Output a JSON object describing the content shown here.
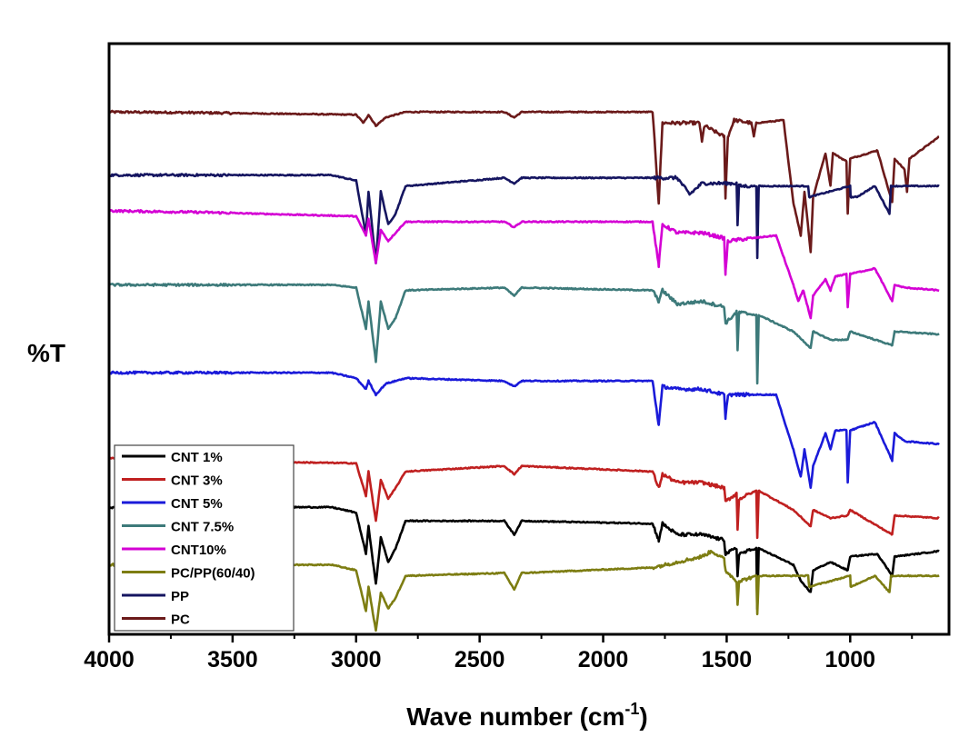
{
  "chart_data": {
    "type": "line",
    "title": "",
    "xlabel": "Wave number (cm",
    "xlabel_superscript": "-1",
    "xlabel_suffix": ")",
    "ylabel": "%T",
    "x_reversed": true,
    "xlim": [
      4000,
      600
    ],
    "x_ticks": [
      4000,
      3500,
      3000,
      2500,
      2000,
      1500,
      1000
    ],
    "x_tick_labels": [
      "4000",
      "3500",
      "3000",
      "2500",
      "2000",
      "1500",
      "1000"
    ],
    "y_units": "relative transmittance (stacked, arbitrary offset)",
    "grid": false,
    "legend_position": "bottom-left",
    "series": [
      {
        "name": "PC",
        "color": "#6b1a1a",
        "baseline": 0.945,
        "points": [
          [
            4000,
            0.945
          ],
          [
            3700,
            0.944
          ],
          [
            3000,
            0.94
          ],
          [
            2970,
            0.925
          ],
          [
            2950,
            0.94
          ],
          [
            2920,
            0.92
          ],
          [
            2880,
            0.935
          ],
          [
            2800,
            0.945
          ],
          [
            2400,
            0.945
          ],
          [
            2360,
            0.935
          ],
          [
            2330,
            0.945
          ],
          [
            1800,
            0.945
          ],
          [
            1775,
            0.78
          ],
          [
            1760,
            0.925
          ],
          [
            1610,
            0.925
          ],
          [
            1600,
            0.89
          ],
          [
            1590,
            0.92
          ],
          [
            1510,
            0.9
          ],
          [
            1505,
            0.79
          ],
          [
            1495,
            0.9
          ],
          [
            1470,
            0.93
          ],
          [
            1400,
            0.925
          ],
          [
            1390,
            0.9
          ],
          [
            1380,
            0.925
          ],
          [
            1270,
            0.93
          ],
          [
            1230,
            0.78
          ],
          [
            1200,
            0.72
          ],
          [
            1185,
            0.8
          ],
          [
            1160,
            0.69
          ],
          [
            1150,
            0.79
          ],
          [
            1100,
            0.87
          ],
          [
            1080,
            0.81
          ],
          [
            1070,
            0.87
          ],
          [
            1015,
            0.855
          ],
          [
            1010,
            0.76
          ],
          [
            1000,
            0.86
          ],
          [
            890,
            0.875
          ],
          [
            830,
            0.78
          ],
          [
            820,
            0.86
          ],
          [
            780,
            0.84
          ],
          [
            770,
            0.8
          ],
          [
            760,
            0.86
          ],
          [
            640,
            0.9
          ]
        ]
      },
      {
        "name": "PP",
        "color": "#151560",
        "baseline": 0.83,
        "points": [
          [
            4000,
            0.83
          ],
          [
            3100,
            0.83
          ],
          [
            3000,
            0.82
          ],
          [
            2960,
            0.72
          ],
          [
            2950,
            0.8
          ],
          [
            2920,
            0.67
          ],
          [
            2900,
            0.8
          ],
          [
            2870,
            0.74
          ],
          [
            2840,
            0.76
          ],
          [
            2800,
            0.81
          ],
          [
            2400,
            0.825
          ],
          [
            2360,
            0.815
          ],
          [
            2330,
            0.825
          ],
          [
            1700,
            0.825
          ],
          [
            1650,
            0.795
          ],
          [
            1600,
            0.815
          ],
          [
            1460,
            0.815
          ],
          [
            1456,
            0.74
          ],
          [
            1450,
            0.81
          ],
          [
            1380,
            0.81
          ],
          [
            1376,
            0.68
          ],
          [
            1370,
            0.81
          ],
          [
            1170,
            0.81
          ],
          [
            1166,
            0.79
          ],
          [
            1000,
            0.81
          ],
          [
            998,
            0.79
          ],
          [
            974,
            0.79
          ],
          [
            900,
            0.81
          ],
          [
            841,
            0.76
          ],
          [
            835,
            0.81
          ],
          [
            640,
            0.81
          ]
        ]
      },
      {
        "name": "CNT10%",
        "color": "#d400d4",
        "baseline": 0.765,
        "points": [
          [
            4000,
            0.765
          ],
          [
            3600,
            0.762
          ],
          [
            3000,
            0.755
          ],
          [
            2960,
            0.72
          ],
          [
            2950,
            0.75
          ],
          [
            2920,
            0.67
          ],
          [
            2900,
            0.73
          ],
          [
            2870,
            0.71
          ],
          [
            2800,
            0.745
          ],
          [
            2400,
            0.745
          ],
          [
            2360,
            0.735
          ],
          [
            2330,
            0.745
          ],
          [
            1800,
            0.745
          ],
          [
            1775,
            0.665
          ],
          [
            1760,
            0.74
          ],
          [
            1700,
            0.725
          ],
          [
            1600,
            0.725
          ],
          [
            1510,
            0.715
          ],
          [
            1505,
            0.65
          ],
          [
            1495,
            0.71
          ],
          [
            1300,
            0.72
          ],
          [
            1230,
            0.63
          ],
          [
            1210,
            0.6
          ],
          [
            1190,
            0.62
          ],
          [
            1160,
            0.57
          ],
          [
            1150,
            0.61
          ],
          [
            1100,
            0.64
          ],
          [
            1080,
            0.62
          ],
          [
            1060,
            0.645
          ],
          [
            1015,
            0.65
          ],
          [
            1010,
            0.59
          ],
          [
            1000,
            0.65
          ],
          [
            900,
            0.66
          ],
          [
            830,
            0.6
          ],
          [
            820,
            0.63
          ],
          [
            780,
            0.625
          ],
          [
            640,
            0.62
          ]
        ]
      },
      {
        "name": "CNT 7.5%",
        "color": "#3d7a7a",
        "baseline": 0.63,
        "points": [
          [
            4000,
            0.63
          ],
          [
            3100,
            0.63
          ],
          [
            3000,
            0.625
          ],
          [
            2960,
            0.55
          ],
          [
            2950,
            0.6
          ],
          [
            2920,
            0.49
          ],
          [
            2900,
            0.6
          ],
          [
            2870,
            0.55
          ],
          [
            2840,
            0.57
          ],
          [
            2800,
            0.62
          ],
          [
            2400,
            0.625
          ],
          [
            2360,
            0.61
          ],
          [
            2330,
            0.625
          ],
          [
            1800,
            0.62
          ],
          [
            1775,
            0.6
          ],
          [
            1760,
            0.62
          ],
          [
            1700,
            0.595
          ],
          [
            1600,
            0.6
          ],
          [
            1510,
            0.59
          ],
          [
            1505,
            0.56
          ],
          [
            1460,
            0.58
          ],
          [
            1456,
            0.51
          ],
          [
            1450,
            0.58
          ],
          [
            1380,
            0.575
          ],
          [
            1376,
            0.45
          ],
          [
            1370,
            0.575
          ],
          [
            1230,
            0.545
          ],
          [
            1160,
            0.515
          ],
          [
            1150,
            0.545
          ],
          [
            1080,
            0.53
          ],
          [
            1010,
            0.53
          ],
          [
            1000,
            0.545
          ],
          [
            830,
            0.52
          ],
          [
            820,
            0.545
          ],
          [
            640,
            0.54
          ]
        ]
      },
      {
        "name": "CNT 5%",
        "color": "#1a1ad9",
        "baseline": 0.47,
        "points": [
          [
            4000,
            0.47
          ],
          [
            3100,
            0.47
          ],
          [
            3000,
            0.46
          ],
          [
            2960,
            0.44
          ],
          [
            2950,
            0.455
          ],
          [
            2920,
            0.43
          ],
          [
            2880,
            0.45
          ],
          [
            2800,
            0.46
          ],
          [
            2400,
            0.455
          ],
          [
            2360,
            0.445
          ],
          [
            2330,
            0.455
          ],
          [
            1800,
            0.455
          ],
          [
            1775,
            0.375
          ],
          [
            1760,
            0.445
          ],
          [
            1700,
            0.44
          ],
          [
            1600,
            0.44
          ],
          [
            1510,
            0.43
          ],
          [
            1505,
            0.385
          ],
          [
            1495,
            0.43
          ],
          [
            1300,
            0.43
          ],
          [
            1230,
            0.33
          ],
          [
            1200,
            0.28
          ],
          [
            1185,
            0.33
          ],
          [
            1160,
            0.26
          ],
          [
            1150,
            0.3
          ],
          [
            1100,
            0.36
          ],
          [
            1080,
            0.33
          ],
          [
            1060,
            0.365
          ],
          [
            1015,
            0.365
          ],
          [
            1010,
            0.27
          ],
          [
            1000,
            0.365
          ],
          [
            900,
            0.38
          ],
          [
            830,
            0.31
          ],
          [
            820,
            0.36
          ],
          [
            780,
            0.345
          ],
          [
            640,
            0.34
          ]
        ]
      },
      {
        "name": "CNT 3%",
        "color": "#c02020",
        "baseline": 0.315,
        "points": [
          [
            4000,
            0.315
          ],
          [
            3700,
            0.31
          ],
          [
            3000,
            0.305
          ],
          [
            2960,
            0.245
          ],
          [
            2950,
            0.29
          ],
          [
            2920,
            0.2
          ],
          [
            2900,
            0.275
          ],
          [
            2870,
            0.24
          ],
          [
            2840,
            0.26
          ],
          [
            2800,
            0.29
          ],
          [
            2400,
            0.3
          ],
          [
            2360,
            0.285
          ],
          [
            2330,
            0.3
          ],
          [
            1800,
            0.29
          ],
          [
            1775,
            0.26
          ],
          [
            1760,
            0.285
          ],
          [
            1700,
            0.27
          ],
          [
            1600,
            0.27
          ],
          [
            1510,
            0.26
          ],
          [
            1505,
            0.235
          ],
          [
            1460,
            0.25
          ],
          [
            1456,
            0.185
          ],
          [
            1450,
            0.24
          ],
          [
            1380,
            0.255
          ],
          [
            1376,
            0.17
          ],
          [
            1370,
            0.255
          ],
          [
            1230,
            0.22
          ],
          [
            1160,
            0.19
          ],
          [
            1150,
            0.22
          ],
          [
            1080,
            0.205
          ],
          [
            1010,
            0.21
          ],
          [
            1000,
            0.22
          ],
          [
            830,
            0.175
          ],
          [
            820,
            0.21
          ],
          [
            640,
            0.205
          ]
        ]
      },
      {
        "name": "CNT 1%",
        "color": "#000000",
        "baseline": 0.225,
        "points": [
          [
            4000,
            0.225
          ],
          [
            3100,
            0.225
          ],
          [
            3000,
            0.215
          ],
          [
            2960,
            0.14
          ],
          [
            2950,
            0.19
          ],
          [
            2920,
            0.085
          ],
          [
            2900,
            0.17
          ],
          [
            2870,
            0.125
          ],
          [
            2840,
            0.15
          ],
          [
            2800,
            0.2
          ],
          [
            2400,
            0.2
          ],
          [
            2360,
            0.175
          ],
          [
            2330,
            0.2
          ],
          [
            1800,
            0.195
          ],
          [
            1775,
            0.165
          ],
          [
            1760,
            0.195
          ],
          [
            1700,
            0.175
          ],
          [
            1600,
            0.175
          ],
          [
            1510,
            0.165
          ],
          [
            1505,
            0.14
          ],
          [
            1460,
            0.15
          ],
          [
            1456,
            0.1
          ],
          [
            1450,
            0.14
          ],
          [
            1380,
            0.15
          ],
          [
            1376,
            0.04
          ],
          [
            1370,
            0.15
          ],
          [
            1230,
            0.12
          ],
          [
            1200,
            0.09
          ],
          [
            1160,
            0.07
          ],
          [
            1150,
            0.11
          ],
          [
            1080,
            0.125
          ],
          [
            1010,
            0.11
          ],
          [
            1000,
            0.135
          ],
          [
            890,
            0.14
          ],
          [
            830,
            0.1
          ],
          [
            820,
            0.135
          ],
          [
            640,
            0.145
          ]
        ]
      },
      {
        "name": "PC/PP(60/40)",
        "color": "#7d7d12",
        "baseline": 0.12,
        "points": [
          [
            4000,
            0.12
          ],
          [
            3100,
            0.12
          ],
          [
            3000,
            0.11
          ],
          [
            2960,
            0.035
          ],
          [
            2950,
            0.08
          ],
          [
            2920,
            0.0
          ],
          [
            2900,
            0.07
          ],
          [
            2870,
            0.04
          ],
          [
            2840,
            0.06
          ],
          [
            2800,
            0.1
          ],
          [
            2400,
            0.105
          ],
          [
            2360,
            0.075
          ],
          [
            2330,
            0.105
          ],
          [
            1800,
            0.115
          ],
          [
            1700,
            0.125
          ],
          [
            1600,
            0.135
          ],
          [
            1560,
            0.145
          ],
          [
            1510,
            0.13
          ],
          [
            1505,
            0.11
          ],
          [
            1460,
            0.09
          ],
          [
            1456,
            0.05
          ],
          [
            1450,
            0.09
          ],
          [
            1380,
            0.1
          ],
          [
            1376,
            0.03
          ],
          [
            1370,
            0.1
          ],
          [
            1300,
            0.1
          ],
          [
            1170,
            0.1
          ],
          [
            1166,
            0.08
          ],
          [
            1000,
            0.1
          ],
          [
            998,
            0.08
          ],
          [
            974,
            0.085
          ],
          [
            900,
            0.1
          ],
          [
            841,
            0.07
          ],
          [
            835,
            0.1
          ],
          [
            640,
            0.1
          ]
        ]
      }
    ]
  }
}
